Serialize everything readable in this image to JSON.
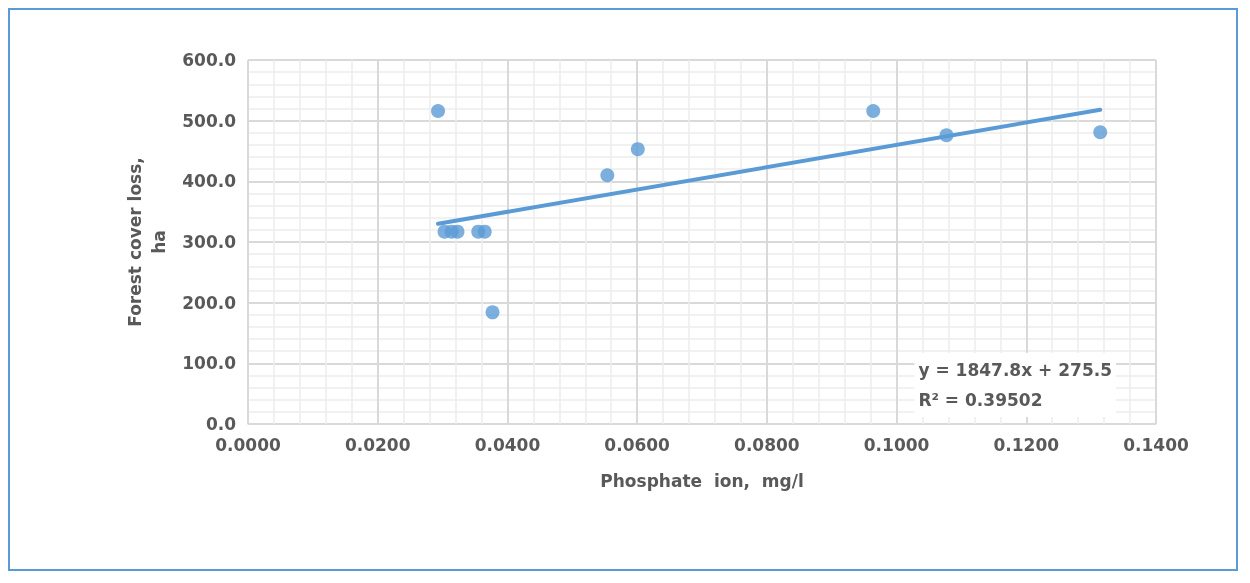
{
  "chart_data": {
    "type": "scatter",
    "xlabel": "Phosphate  ion,  mg/l",
    "ylabel": "Forest cover loss,\nha",
    "x": [
      0.0293,
      0.0303,
      0.0314,
      0.0323,
      0.0355,
      0.0365,
      0.0377,
      0.0554,
      0.0601,
      0.0964,
      0.1077,
      0.1314
    ],
    "series": [
      {
        "color": "#5b9bd5",
        "values": [
          516,
          317,
          317,
          317,
          317,
          317,
          184,
          410,
          453,
          516,
          476,
          481
        ]
      },
      {
        "type": "line",
        "marker": "none",
        "color": "#5b9bd5",
        "x": [
          0.0293,
          0.1314
        ],
        "values": [
          330,
          518
        ]
      }
    ],
    "xlim": [
      0,
      0.14
    ],
    "ylim": [
      0,
      600
    ],
    "xticks": [
      {
        "value": 0,
        "label": "0.0000"
      },
      {
        "value": 0.02,
        "label": "0.0200"
      },
      {
        "value": 0.04,
        "label": "0.0400"
      },
      {
        "value": 0.06,
        "label": "0.0600"
      },
      {
        "value": 0.08,
        "label": "0.0800"
      },
      {
        "value": 0.1,
        "label": "0.1000"
      },
      {
        "value": 0.12,
        "label": "0.1200"
      },
      {
        "value": 0.14,
        "label": "0.1400"
      }
    ],
    "yticks": [
      {
        "value": 0,
        "label": "0.0"
      },
      {
        "value": 100,
        "label": "100.0"
      },
      {
        "value": 200,
        "label": "200.0"
      },
      {
        "value": 300,
        "label": "300.0"
      },
      {
        "value": 400,
        "label": "400.0"
      },
      {
        "value": 500,
        "label": "500.0"
      },
      {
        "value": 600,
        "label": "600.0"
      }
    ],
    "annotations": [
      "y = 1847.8x + 275.5\nR² = 0.39502"
    ],
    "grid": true,
    "marker": "circle"
  }
}
